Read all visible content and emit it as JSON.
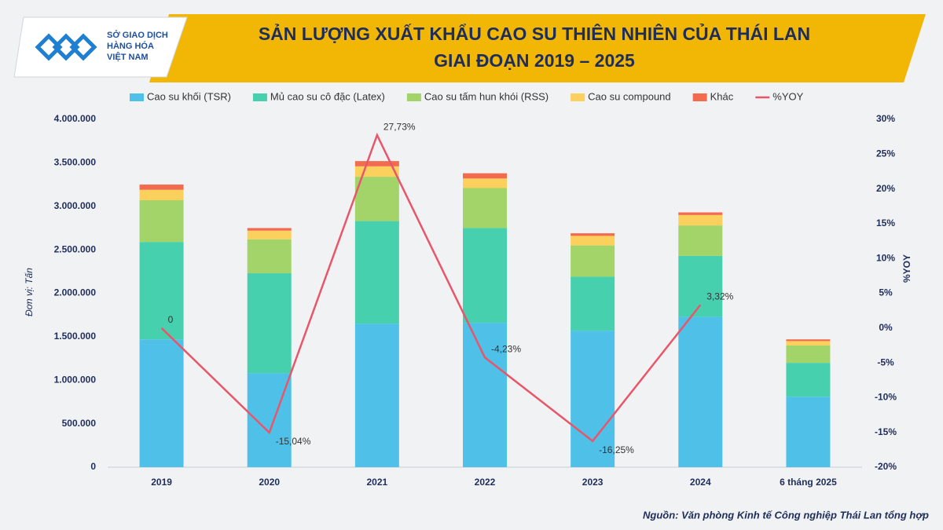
{
  "logo": {
    "lines": [
      "SỞ GIAO DỊCH",
      "HÀNG HÓA",
      "VIỆT NAM"
    ]
  },
  "chart_data": {
    "type": "stacked-bar-line",
    "title_lines": [
      "SẢN LƯỢNG XUẤT KHẨU CAO SU THIÊN NHIÊN CỦA THÁI LAN",
      "GIAI ĐOẠN 2019 – 2025"
    ],
    "y_label": "Đơn vị: Tấn",
    "y2_label": "%YOY",
    "source": "Nguồn: Văn phòng Kinh tế Công nghiệp Thái Lan tổng hợp",
    "categories": [
      "2019",
      "2020",
      "2021",
      "2022",
      "2023",
      "2024",
      "6 tháng 2025"
    ],
    "series": [
      {
        "name": "Cao su khối (TSR)",
        "color": "#4fc1e9",
        "values": [
          1470000,
          1080000,
          1650000,
          1660000,
          1570000,
          1730000,
          810000
        ]
      },
      {
        "name": "Mủ cao su cô đặc (Latex)",
        "color": "#47d0ae",
        "values": [
          1120000,
          1150000,
          1180000,
          1090000,
          620000,
          700000,
          390000
        ]
      },
      {
        "name": "Cao su tấm hun khói (RSS)",
        "color": "#a3d46a",
        "values": [
          480000,
          390000,
          510000,
          460000,
          360000,
          350000,
          200000
        ]
      },
      {
        "name": "Cao su compound",
        "color": "#fcd05c",
        "values": [
          120000,
          100000,
          120000,
          110000,
          110000,
          120000,
          50000
        ]
      },
      {
        "name": "Khác",
        "color": "#f26b4e",
        "values": [
          60000,
          30000,
          60000,
          60000,
          30000,
          30000,
          20000
        ]
      },
      {
        "name": "%YOY",
        "color": "#e8566a",
        "axis": "y2",
        "values": [
          0,
          -15.04,
          27.73,
          -4.23,
          -16.25,
          3.32,
          null
        ],
        "value_labels": [
          "0",
          "-15,04%",
          "27,73%",
          "-4,23%",
          "-16,25%",
          "3,32%",
          null
        ]
      }
    ],
    "ylim": [
      0,
      4000000
    ],
    "yticks": [
      0,
      {
        "value": 500000,
        "label": "500.000"
      },
      {
        "value": 1000000,
        "label": "1.000.000"
      },
      {
        "value": 1500000,
        "label": "1.500.000"
      },
      {
        "value": 2000000,
        "label": "2.000.000"
      },
      {
        "value": 2500000,
        "label": "2.500.000"
      },
      {
        "value": 3000000,
        "label": "3.000.000"
      },
      {
        "value": 3500000,
        "label": "3.500.000"
      },
      {
        "value": 4000000,
        "label": "4.000.000"
      }
    ],
    "y2lim": [
      -20,
      30
    ],
    "y2ticks": [
      {
        "value": -20,
        "label": "-20%"
      },
      {
        "value": -15,
        "label": "-15%"
      },
      {
        "value": -10,
        "label": "-10%"
      },
      {
        "value": -5,
        "label": "-5%"
      },
      {
        "value": 0,
        "label": "0%"
      },
      {
        "value": 5,
        "label": "5%"
      },
      {
        "value": 10,
        "label": "10%"
      },
      {
        "value": 15,
        "label": "15%"
      },
      {
        "value": 20,
        "label": "20%"
      },
      {
        "value": 25,
        "label": "25%"
      },
      {
        "value": 30,
        "label": "30%"
      }
    ],
    "legend": "top"
  }
}
